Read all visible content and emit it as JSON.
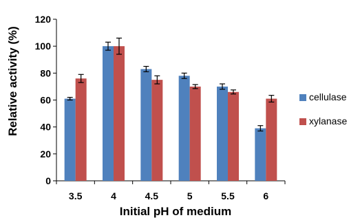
{
  "chart_data": {
    "type": "bar",
    "xlabel": "Initial pH of medium",
    "ylabel": "Relative activity (%)",
    "ylim": [
      0,
      120
    ],
    "yticks": [
      0,
      20,
      40,
      60,
      80,
      100,
      120
    ],
    "categories": [
      "3.5",
      "4",
      "4.5",
      "5",
      "5.5",
      "6"
    ],
    "grid": false,
    "legend_position": "right",
    "error_bars": true,
    "series": [
      {
        "name": "cellulase",
        "color": "#4F81BD",
        "values": [
          61,
          100,
          83,
          78,
          70,
          39
        ],
        "errors": [
          1,
          3,
          2,
          2,
          2,
          2
        ]
      },
      {
        "name": "xylanase",
        "color": "#C0504D",
        "values": [
          76,
          100,
          75,
          70,
          66,
          61
        ],
        "errors": [
          3,
          6,
          3,
          1.5,
          1.5,
          2.5
        ]
      }
    ]
  }
}
